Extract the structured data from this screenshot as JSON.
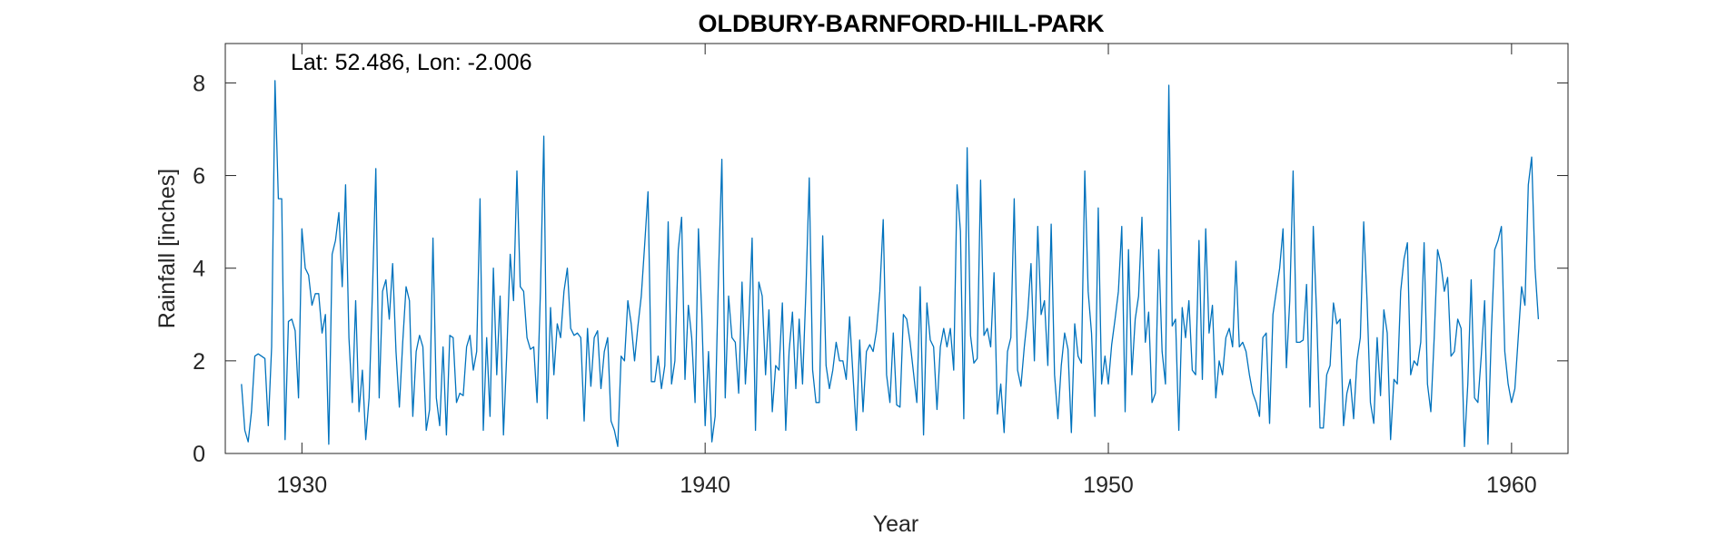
{
  "chart_data": {
    "type": "line",
    "title": "OLDBURY-BARNFORD-HILL-PARK",
    "annotation": "Lat: 52.486, Lon: -2.006",
    "xlabel": "Year",
    "ylabel": "Rainfall [inches]",
    "xlim": [
      1928.1,
      1961.4
    ],
    "ylim": [
      0,
      8.85
    ],
    "xticks": [
      1930,
      1940,
      1950,
      1960
    ],
    "yticks": [
      0,
      2,
      4,
      6,
      8
    ],
    "grid": false,
    "line_color": "#0072BD",
    "x_start": 1928.5,
    "x_step": 0.08333,
    "values": [
      1.5,
      0.5,
      0.25,
      0.9,
      2.1,
      2.15,
      2.1,
      2.05,
      0.6,
      2.3,
      8.05,
      5.5,
      5.5,
      0.3,
      2.85,
      2.9,
      2.65,
      1.2,
      4.85,
      4.0,
      3.85,
      3.2,
      3.45,
      3.45,
      2.6,
      3.0,
      0.2,
      4.3,
      4.6,
      5.2,
      3.6,
      5.8,
      2.5,
      1.1,
      3.3,
      0.9,
      1.8,
      0.3,
      1.2,
      3.5,
      6.15,
      1.2,
      3.5,
      3.75,
      2.9,
      4.1,
      2.2,
      1.0,
      2.4,
      3.6,
      3.3,
      0.8,
      2.2,
      2.55,
      2.3,
      0.5,
      0.95,
      4.65,
      1.2,
      0.6,
      2.3,
      0.4,
      2.55,
      2.5,
      1.1,
      1.3,
      1.25,
      2.3,
      2.55,
      1.8,
      2.2,
      5.5,
      0.5,
      2.5,
      0.8,
      4.0,
      1.7,
      3.4,
      0.4,
      2.2,
      4.3,
      3.3,
      6.1,
      3.6,
      3.5,
      2.5,
      2.25,
      2.3,
      1.1,
      3.5,
      6.85,
      0.75,
      3.15,
      1.7,
      2.8,
      2.5,
      3.5,
      4.0,
      2.7,
      2.55,
      2.6,
      2.5,
      0.7,
      2.7,
      1.45,
      2.5,
      2.65,
      1.4,
      2.2,
      2.5,
      0.7,
      0.5,
      0.15,
      2.1,
      2.0,
      3.3,
      2.8,
      2.0,
      2.75,
      3.4,
      4.5,
      5.65,
      1.55,
      1.55,
      2.1,
      1.4,
      1.9,
      5.0,
      1.5,
      2.0,
      4.4,
      5.1,
      1.6,
      3.2,
      2.5,
      1.1,
      4.85,
      3.0,
      0.6,
      2.2,
      0.25,
      0.8,
      3.85,
      6.35,
      1.2,
      3.4,
      2.5,
      2.4,
      1.3,
      3.7,
      1.5,
      2.8,
      4.65,
      0.5,
      3.7,
      3.4,
      1.7,
      3.1,
      0.9,
      1.9,
      1.8,
      3.25,
      0.5,
      2.2,
      3.05,
      1.4,
      2.9,
      1.5,
      3.5,
      5.95,
      1.8,
      1.1,
      1.1,
      4.7,
      1.9,
      1.4,
      1.8,
      2.4,
      2.0,
      2.0,
      1.6,
      2.95,
      1.7,
      0.5,
      2.45,
      0.9,
      2.2,
      2.35,
      2.2,
      2.65,
      3.5,
      5.05,
      1.7,
      1.1,
      2.6,
      1.05,
      1.0,
      3.0,
      2.9,
      2.4,
      1.75,
      1.1,
      3.6,
      0.4,
      3.25,
      2.45,
      2.3,
      0.95,
      2.3,
      2.7,
      2.3,
      2.7,
      1.8,
      5.8,
      4.8,
      0.75,
      6.6,
      2.55,
      1.95,
      2.05,
      5.9,
      2.55,
      2.7,
      2.3,
      3.9,
      0.85,
      1.5,
      0.45,
      2.2,
      2.5,
      5.5,
      1.8,
      1.45,
      2.3,
      3.0,
      4.1,
      2.0,
      4.9,
      3.0,
      3.3,
      1.9,
      4.95,
      1.7,
      0.75,
      1.9,
      2.6,
      2.25,
      0.45,
      2.8,
      2.1,
      1.95,
      6.1,
      3.5,
      2.6,
      0.8,
      5.3,
      1.5,
      2.1,
      1.5,
      2.35,
      2.9,
      3.5,
      4.9,
      0.9,
      4.4,
      1.7,
      2.9,
      3.4,
      5.1,
      2.4,
      3.05,
      1.1,
      1.3,
      4.4,
      2.2,
      1.5,
      7.95,
      2.75,
      2.9,
      0.5,
      3.15,
      2.5,
      3.3,
      1.8,
      1.7,
      4.6,
      1.6,
      4.85,
      2.6,
      3.2,
      1.2,
      2.0,
      1.7,
      2.5,
      2.7,
      2.3,
      4.15,
      2.3,
      2.4,
      2.2,
      1.7,
      1.3,
      1.1,
      0.8,
      2.5,
      2.6,
      0.65,
      3.0,
      3.5,
      4.0,
      4.85,
      1.85,
      3.3,
      6.1,
      2.4,
      2.4,
      2.45,
      3.65,
      1.0,
      4.9,
      3.0,
      0.55,
      0.55,
      1.7,
      1.9,
      3.25,
      2.8,
      2.9,
      0.6,
      1.3,
      1.6,
      0.75,
      2.0,
      2.5,
      5.0,
      3.3,
      1.1,
      0.65,
      2.5,
      1.25,
      3.1,
      2.6,
      0.3,
      1.6,
      1.5,
      3.5,
      4.2,
      4.55,
      1.7,
      2.0,
      1.9,
      2.4,
      4.55,
      1.5,
      0.9,
      2.5,
      4.4,
      4.1,
      3.5,
      3.8,
      2.1,
      2.2,
      2.9,
      2.7,
      0.15,
      1.5,
      3.75,
      1.2,
      1.1,
      2.1,
      3.3,
      0.2,
      2.6,
      4.4,
      4.6,
      4.9,
      2.2,
      1.5,
      1.1,
      1.4,
      2.5,
      3.6,
      3.2,
      5.8,
      6.4,
      4.0,
      2.9
    ]
  }
}
